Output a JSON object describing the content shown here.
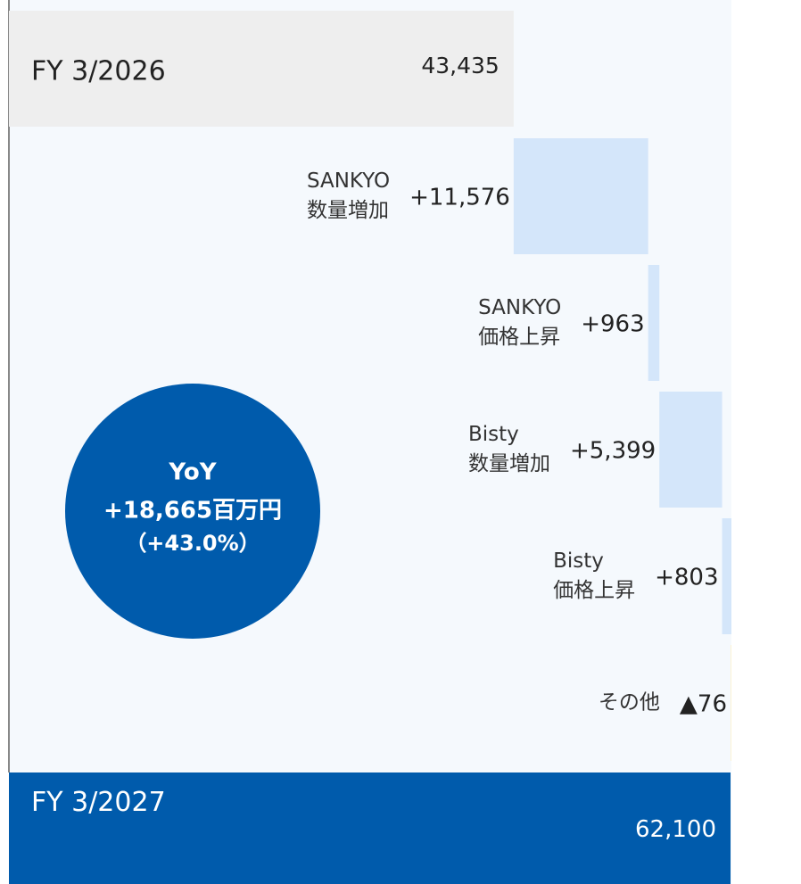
{
  "chart_data": {
    "type": "waterfall",
    "orientation": "horizontal",
    "categories": [
      [
        "FY 3/2026"
      ],
      [
        "SANKYO",
        "数量増加"
      ],
      [
        "SANKYO",
        "価格上昇"
      ],
      [
        "Bisty",
        "数量増加"
      ],
      [
        "Bisty",
        "価格上昇"
      ],
      [
        "その他"
      ],
      [
        "FY 3/2027"
      ]
    ],
    "values": [
      43435,
      11576,
      963,
      5399,
      803,
      -76,
      62100
    ],
    "value_labels": [
      "43,435",
      "+11,576",
      "+963",
      "+5,399",
      "+803",
      "▲76",
      "62,100"
    ],
    "measure": [
      "absolute",
      "relative",
      "relative",
      "relative",
      "relative",
      "relative",
      "total"
    ],
    "colors": {
      "absolute": "#eeeeee",
      "increase": "#d4e6fa",
      "decrease": "#fbf3d5",
      "total": "#005bac"
    },
    "annotations": [
      "YoY",
      "+18,665百万円",
      "（+43.0%）"
    ]
  }
}
